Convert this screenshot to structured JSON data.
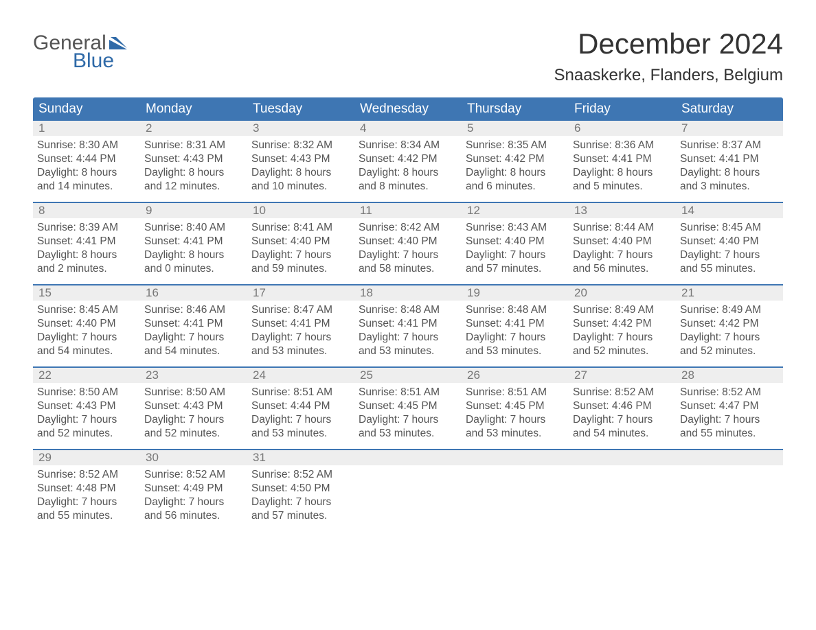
{
  "brand": {
    "word1": "General",
    "word2": "Blue",
    "word1_color": "#555555",
    "word2_color": "#2f6aa8",
    "flag_color": "#2f6aa8"
  },
  "header": {
    "month_title": "December 2024",
    "location": "Snaaskerke, Flanders, Belgium",
    "title_color": "#333333",
    "title_fontsize": 42,
    "location_fontsize": 24
  },
  "calendar": {
    "header_bg": "#3e76b3",
    "header_fg": "#ffffff",
    "daynum_bg": "#eeeeee",
    "daynum_fg": "#777777",
    "week_border": "#3e76b3",
    "body_fg": "#555555",
    "day_names": [
      "Sunday",
      "Monday",
      "Tuesday",
      "Wednesday",
      "Thursday",
      "Friday",
      "Saturday"
    ],
    "weeks": [
      [
        {
          "n": "1",
          "sunrise": "Sunrise: 8:30 AM",
          "sunset": "Sunset: 4:44 PM",
          "d1": "Daylight: 8 hours",
          "d2": "and 14 minutes."
        },
        {
          "n": "2",
          "sunrise": "Sunrise: 8:31 AM",
          "sunset": "Sunset: 4:43 PM",
          "d1": "Daylight: 8 hours",
          "d2": "and 12 minutes."
        },
        {
          "n": "3",
          "sunrise": "Sunrise: 8:32 AM",
          "sunset": "Sunset: 4:43 PM",
          "d1": "Daylight: 8 hours",
          "d2": "and 10 minutes."
        },
        {
          "n": "4",
          "sunrise": "Sunrise: 8:34 AM",
          "sunset": "Sunset: 4:42 PM",
          "d1": "Daylight: 8 hours",
          "d2": "and 8 minutes."
        },
        {
          "n": "5",
          "sunrise": "Sunrise: 8:35 AM",
          "sunset": "Sunset: 4:42 PM",
          "d1": "Daylight: 8 hours",
          "d2": "and 6 minutes."
        },
        {
          "n": "6",
          "sunrise": "Sunrise: 8:36 AM",
          "sunset": "Sunset: 4:41 PM",
          "d1": "Daylight: 8 hours",
          "d2": "and 5 minutes."
        },
        {
          "n": "7",
          "sunrise": "Sunrise: 8:37 AM",
          "sunset": "Sunset: 4:41 PM",
          "d1": "Daylight: 8 hours",
          "d2": "and 3 minutes."
        }
      ],
      [
        {
          "n": "8",
          "sunrise": "Sunrise: 8:39 AM",
          "sunset": "Sunset: 4:41 PM",
          "d1": "Daylight: 8 hours",
          "d2": "and 2 minutes."
        },
        {
          "n": "9",
          "sunrise": "Sunrise: 8:40 AM",
          "sunset": "Sunset: 4:41 PM",
          "d1": "Daylight: 8 hours",
          "d2": "and 0 minutes."
        },
        {
          "n": "10",
          "sunrise": "Sunrise: 8:41 AM",
          "sunset": "Sunset: 4:40 PM",
          "d1": "Daylight: 7 hours",
          "d2": "and 59 minutes."
        },
        {
          "n": "11",
          "sunrise": "Sunrise: 8:42 AM",
          "sunset": "Sunset: 4:40 PM",
          "d1": "Daylight: 7 hours",
          "d2": "and 58 minutes."
        },
        {
          "n": "12",
          "sunrise": "Sunrise: 8:43 AM",
          "sunset": "Sunset: 4:40 PM",
          "d1": "Daylight: 7 hours",
          "d2": "and 57 minutes."
        },
        {
          "n": "13",
          "sunrise": "Sunrise: 8:44 AM",
          "sunset": "Sunset: 4:40 PM",
          "d1": "Daylight: 7 hours",
          "d2": "and 56 minutes."
        },
        {
          "n": "14",
          "sunrise": "Sunrise: 8:45 AM",
          "sunset": "Sunset: 4:40 PM",
          "d1": "Daylight: 7 hours",
          "d2": "and 55 minutes."
        }
      ],
      [
        {
          "n": "15",
          "sunrise": "Sunrise: 8:45 AM",
          "sunset": "Sunset: 4:40 PM",
          "d1": "Daylight: 7 hours",
          "d2": "and 54 minutes."
        },
        {
          "n": "16",
          "sunrise": "Sunrise: 8:46 AM",
          "sunset": "Sunset: 4:41 PM",
          "d1": "Daylight: 7 hours",
          "d2": "and 54 minutes."
        },
        {
          "n": "17",
          "sunrise": "Sunrise: 8:47 AM",
          "sunset": "Sunset: 4:41 PM",
          "d1": "Daylight: 7 hours",
          "d2": "and 53 minutes."
        },
        {
          "n": "18",
          "sunrise": "Sunrise: 8:48 AM",
          "sunset": "Sunset: 4:41 PM",
          "d1": "Daylight: 7 hours",
          "d2": "and 53 minutes."
        },
        {
          "n": "19",
          "sunrise": "Sunrise: 8:48 AM",
          "sunset": "Sunset: 4:41 PM",
          "d1": "Daylight: 7 hours",
          "d2": "and 53 minutes."
        },
        {
          "n": "20",
          "sunrise": "Sunrise: 8:49 AM",
          "sunset": "Sunset: 4:42 PM",
          "d1": "Daylight: 7 hours",
          "d2": "and 52 minutes."
        },
        {
          "n": "21",
          "sunrise": "Sunrise: 8:49 AM",
          "sunset": "Sunset: 4:42 PM",
          "d1": "Daylight: 7 hours",
          "d2": "and 52 minutes."
        }
      ],
      [
        {
          "n": "22",
          "sunrise": "Sunrise: 8:50 AM",
          "sunset": "Sunset: 4:43 PM",
          "d1": "Daylight: 7 hours",
          "d2": "and 52 minutes."
        },
        {
          "n": "23",
          "sunrise": "Sunrise: 8:50 AM",
          "sunset": "Sunset: 4:43 PM",
          "d1": "Daylight: 7 hours",
          "d2": "and 52 minutes."
        },
        {
          "n": "24",
          "sunrise": "Sunrise: 8:51 AM",
          "sunset": "Sunset: 4:44 PM",
          "d1": "Daylight: 7 hours",
          "d2": "and 53 minutes."
        },
        {
          "n": "25",
          "sunrise": "Sunrise: 8:51 AM",
          "sunset": "Sunset: 4:45 PM",
          "d1": "Daylight: 7 hours",
          "d2": "and 53 minutes."
        },
        {
          "n": "26",
          "sunrise": "Sunrise: 8:51 AM",
          "sunset": "Sunset: 4:45 PM",
          "d1": "Daylight: 7 hours",
          "d2": "and 53 minutes."
        },
        {
          "n": "27",
          "sunrise": "Sunrise: 8:52 AM",
          "sunset": "Sunset: 4:46 PM",
          "d1": "Daylight: 7 hours",
          "d2": "and 54 minutes."
        },
        {
          "n": "28",
          "sunrise": "Sunrise: 8:52 AM",
          "sunset": "Sunset: 4:47 PM",
          "d1": "Daylight: 7 hours",
          "d2": "and 55 minutes."
        }
      ],
      [
        {
          "n": "29",
          "sunrise": "Sunrise: 8:52 AM",
          "sunset": "Sunset: 4:48 PM",
          "d1": "Daylight: 7 hours",
          "d2": "and 55 minutes."
        },
        {
          "n": "30",
          "sunrise": "Sunrise: 8:52 AM",
          "sunset": "Sunset: 4:49 PM",
          "d1": "Daylight: 7 hours",
          "d2": "and 56 minutes."
        },
        {
          "n": "31",
          "sunrise": "Sunrise: 8:52 AM",
          "sunset": "Sunset: 4:50 PM",
          "d1": "Daylight: 7 hours",
          "d2": "and 57 minutes."
        },
        null,
        null,
        null,
        null
      ]
    ]
  }
}
